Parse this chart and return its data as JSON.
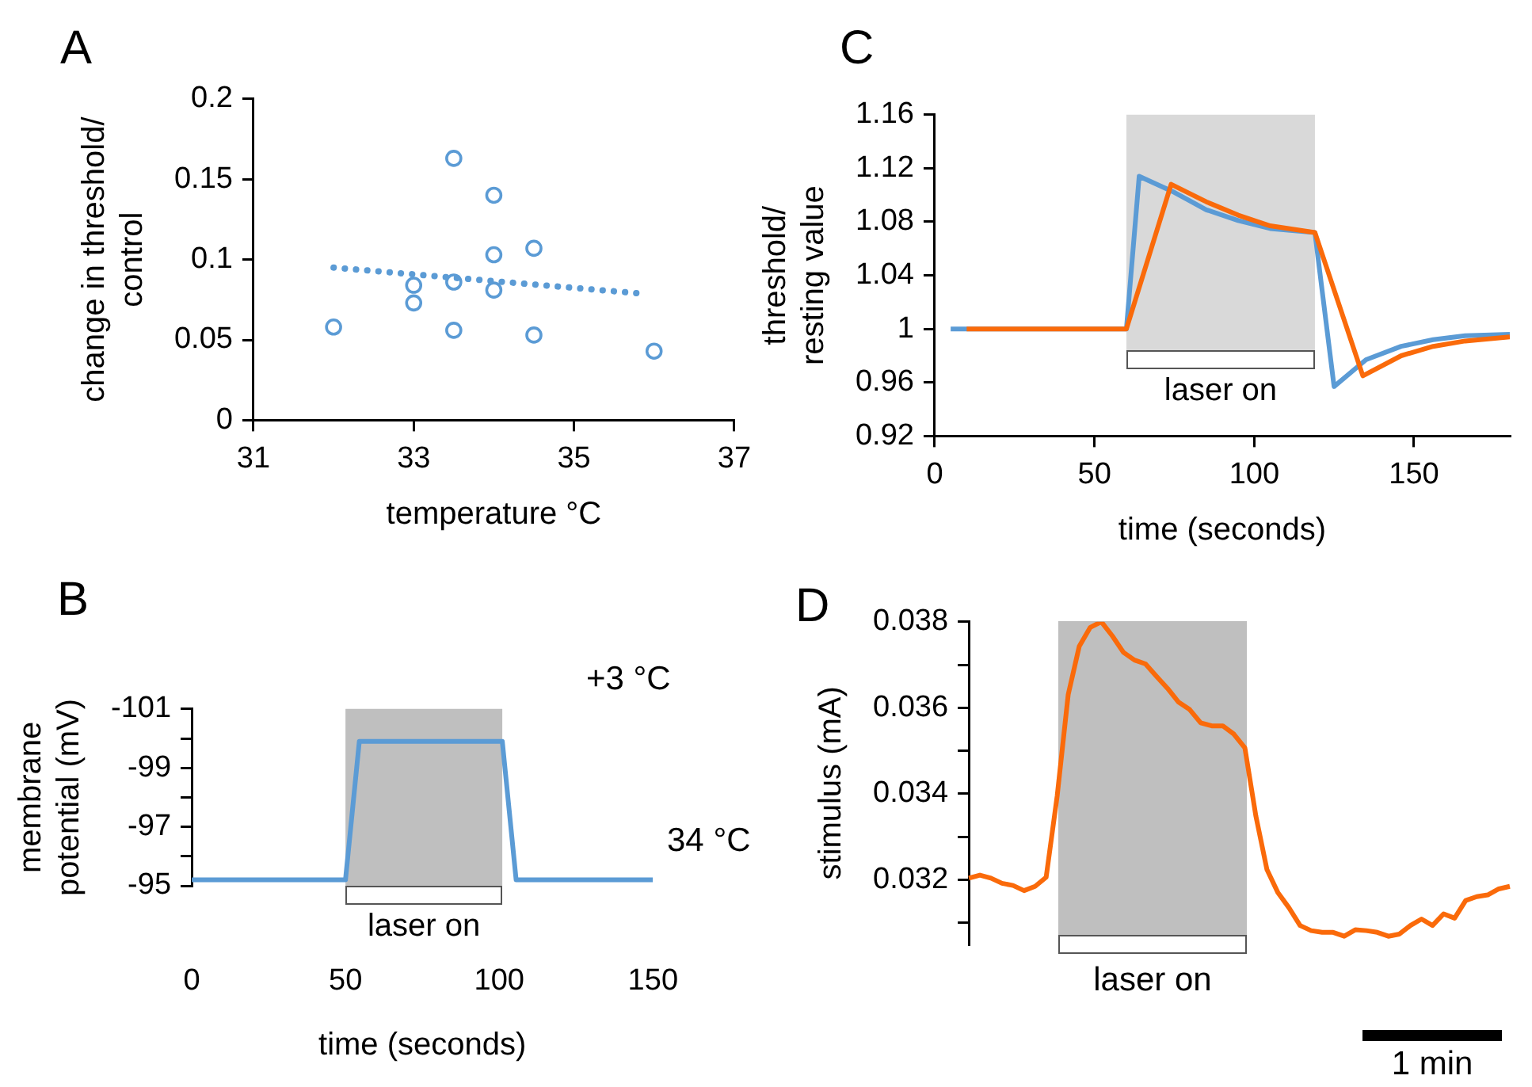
{
  "chart_data": [
    {
      "type": "scatter",
      "title": "A",
      "xlabel": "temperature °C",
      "ylabel": "change in threshold/\ncontrol",
      "xlim": [
        31,
        37
      ],
      "xticks": [
        31,
        33,
        35,
        37
      ],
      "ylim": [
        0,
        0.2
      ],
      "yticks": [
        0,
        0.05,
        0.1,
        0.15,
        0.2
      ],
      "marker": "circle",
      "series": [
        {
          "color": "#5b9bd5",
          "x": [
            32,
            33,
            33,
            33.5,
            33.5,
            33.5,
            34,
            34,
            34,
            34.5,
            34.5,
            36
          ],
          "values": [
            0.058,
            0.084,
            0.073,
            0.163,
            0.086,
            0.056,
            0.14,
            0.103,
            0.081,
            0.107,
            0.053,
            0.043
          ]
        },
        {
          "type": "line",
          "marker": "none",
          "line_style": "dotted",
          "color": "#5b9bd5",
          "x": [
            32,
            35.8
          ],
          "values": [
            0.095,
            0.079
          ]
        }
      ]
    },
    {
      "type": "line",
      "title": "B",
      "xlabel": "time (seconds)",
      "ylabel": "membrane\npotential (mV)",
      "xlim": [
        0,
        150
      ],
      "xticks": [
        0,
        50,
        100,
        150
      ],
      "ylim": [
        -95,
        -101
      ],
      "yticks": [
        -101,
        {
          "value": -100,
          "label": null
        },
        -99,
        {
          "value": -98,
          "label": null
        },
        -97,
        {
          "value": -96,
          "label": null
        },
        -95
      ],
      "series": [
        {
          "color": "#5b9bd5",
          "x": [
            0,
            50,
            54.5,
            101,
            105.5,
            150
          ],
          "values": [
            -95.2,
            -95.2,
            -99.9,
            -99.9,
            -95.2,
            -95.2
          ]
        }
      ],
      "bands": [
        {
          "axis": "x",
          "from": 50,
          "to": 101,
          "label": "laser on",
          "color": "#bfbfbf"
        }
      ],
      "annotations": [
        "+3 °C",
        "34 °C"
      ]
    },
    {
      "type": "line",
      "title": "C",
      "xlabel": "time (seconds)",
      "ylabel": "threshold/\nresting value",
      "xlim": [
        0,
        180
      ],
      "xticks": [
        0,
        50,
        100,
        150
      ],
      "ylim": [
        0.92,
        1.16
      ],
      "yticks": [
        0.92,
        0.96,
        1,
        1.04,
        1.08,
        1.12,
        1.16
      ],
      "series": [
        {
          "color": "#5b9bd5",
          "x": [
            5,
            60,
            64,
            75,
            85,
            95,
            105,
            119,
            125,
            135,
            146,
            156,
            166,
            180
          ],
          "values": [
            1,
            1,
            1.114,
            1.102,
            1.089,
            1.081,
            1.075,
            1.072,
            0.957,
            0.977,
            0.987,
            0.992,
            0.995,
            0.996
          ]
        },
        {
          "color": "#fa6a0a",
          "x": [
            10,
            60,
            74,
            85,
            95,
            105,
            119,
            134,
            146,
            156,
            166,
            180
          ],
          "values": [
            1,
            1,
            1.108,
            1.095,
            1.085,
            1.077,
            1.072,
            0.965,
            0.98,
            0.987,
            0.991,
            0.994
          ]
        }
      ],
      "bands": [
        {
          "axis": "x",
          "from": 60,
          "to": 119,
          "label": "laser on",
          "color": "#d9d9d9"
        }
      ]
    },
    {
      "type": "line",
      "title": "D",
      "ylabel": "stimulus (mA)",
      "tick_labels": "y",
      "categories": [
        null,
        null,
        null,
        null,
        null,
        null,
        null,
        null,
        null,
        null,
        null,
        null,
        null,
        null,
        null,
        null,
        null,
        null,
        null,
        null,
        null,
        null,
        null,
        null,
        null,
        null,
        null,
        null,
        null,
        null,
        null,
        null,
        null,
        null,
        null,
        null,
        null,
        null,
        null,
        null,
        null,
        null,
        null,
        null,
        null,
        null,
        null,
        null,
        null,
        null
      ],
      "ylim": [
        0.0305,
        0.038
      ],
      "yticks": [
        {
          "value": 0.031,
          "label": null
        },
        0.032,
        {
          "value": 0.033,
          "label": null
        },
        0.034,
        {
          "value": 0.035,
          "label": null
        },
        0.036,
        {
          "value": 0.037,
          "label": null
        },
        0.038
      ],
      "series": [
        {
          "color": "#fa6a0a",
          "values": [
            0.03204,
            0.03211,
            0.03204,
            0.03192,
            0.03187,
            0.03175,
            0.03185,
            0.03206,
            0.03395,
            0.03631,
            0.03743,
            0.03787,
            0.038,
            0.03767,
            0.03729,
            0.03711,
            0.03702,
            0.03673,
            0.03645,
            0.03613,
            0.03596,
            0.03565,
            0.03558,
            0.03558,
            0.03539,
            0.03507,
            0.03348,
            0.03224,
            0.0317,
            0.03135,
            0.03094,
            0.03082,
            0.03078,
            0.03078,
            0.03069,
            0.03084,
            0.03082,
            0.03078,
            0.03069,
            0.03074,
            0.03094,
            0.03109,
            0.03094,
            0.03121,
            0.03111,
            0.03152,
            0.03161,
            0.03165,
            0.03179,
            0.03185
          ]
        }
      ],
      "annotations": [
        "laser on",
        "1 min"
      ]
    }
  ]
}
